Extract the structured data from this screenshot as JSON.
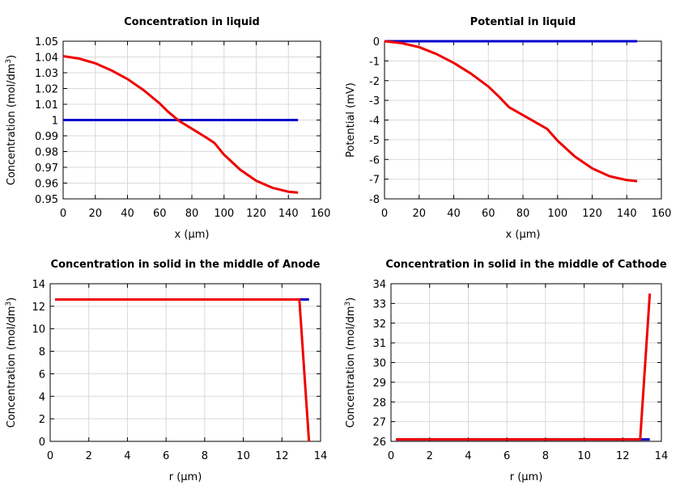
{
  "chart_data": [
    {
      "type": "line",
      "title": "Concentration in liquid",
      "xlabel": "x (µm)",
      "ylabel": "Concentration (mol/dm",
      "ylabel_sup": "3",
      "ylabel_end": ")",
      "xlim": [
        0,
        160
      ],
      "ylim": [
        0.95,
        1.05
      ],
      "xticks": [
        0,
        20,
        40,
        60,
        80,
        100,
        120,
        140,
        160
      ],
      "yticks": [
        0.95,
        0.96,
        0.97,
        0.98,
        0.99,
        1,
        1.01,
        1.02,
        1.03,
        1.04,
        1.05
      ],
      "yticklabels": [
        "0.95",
        "0.96",
        "0.97",
        "0.98",
        "0.99",
        "1",
        "1.01",
        "1.02",
        "1.03",
        "1.04",
        "1.05"
      ],
      "series": [
        {
          "color": "#0000cc",
          "x": [
            0,
            146
          ],
          "y": [
            1.0,
            1.0
          ]
        },
        {
          "color": "#ee0000",
          "x": [
            0,
            10,
            20,
            30,
            40,
            50,
            60,
            65,
            72,
            80,
            88,
            94,
            100,
            110,
            120,
            130,
            140,
            146
          ],
          "y": [
            1.0405,
            1.039,
            1.036,
            1.0315,
            1.026,
            1.019,
            1.0105,
            1.0055,
            0.9995,
            0.9945,
            0.9895,
            0.9855,
            0.978,
            0.9685,
            0.9615,
            0.957,
            0.9545,
            0.954
          ]
        }
      ]
    },
    {
      "type": "line",
      "title": "Potential in liquid",
      "xlabel": "x (µm)",
      "ylabel": "Potential (mV)",
      "ylabel_sup": "",
      "ylabel_end": "",
      "xlim": [
        0,
        160
      ],
      "ylim": [
        -8,
        0
      ],
      "xticks": [
        0,
        20,
        40,
        60,
        80,
        100,
        120,
        140,
        160
      ],
      "yticks": [
        -8,
        -7,
        -6,
        -5,
        -4,
        -3,
        -2,
        -1,
        0
      ],
      "yticklabels": [
        "-8",
        "-7",
        "-6",
        "-5",
        "-4",
        "-3",
        "-2",
        "-1",
        "0"
      ],
      "series": [
        {
          "color": "#0000cc",
          "x": [
            0,
            146
          ],
          "y": [
            0,
            0
          ]
        },
        {
          "color": "#ee0000",
          "x": [
            0,
            10,
            20,
            30,
            40,
            50,
            60,
            66,
            72,
            80,
            88,
            94,
            100,
            110,
            120,
            130,
            140,
            146
          ],
          "y": [
            0,
            -0.1,
            -0.3,
            -0.65,
            -1.1,
            -1.65,
            -2.3,
            -2.8,
            -3.35,
            -3.75,
            -4.15,
            -4.45,
            -5.05,
            -5.85,
            -6.45,
            -6.85,
            -7.05,
            -7.1
          ]
        }
      ]
    },
    {
      "type": "line",
      "title": "Concentration in solid in the middle of Anode",
      "xlabel": "r (µm)",
      "ylabel": "Concentration (mol/dm",
      "ylabel_sup": "3",
      "ylabel_end": ")",
      "xlim": [
        0,
        14
      ],
      "ylim": [
        0,
        14
      ],
      "xticks": [
        0,
        2,
        4,
        6,
        8,
        10,
        12,
        14
      ],
      "yticks": [
        0,
        2,
        4,
        6,
        8,
        10,
        12,
        14
      ],
      "yticklabels": [
        "0",
        "2",
        "4",
        "6",
        "8",
        "10",
        "12",
        "14"
      ],
      "series": [
        {
          "color": "#0000cc",
          "x": [
            0.25,
            13.4
          ],
          "y": [
            12.6,
            12.6
          ]
        },
        {
          "color": "#ee0000",
          "x": [
            0.25,
            12.9,
            13.4
          ],
          "y": [
            12.6,
            12.6,
            0
          ]
        }
      ]
    },
    {
      "type": "line",
      "title": "Concentration in solid in the middle of Cathode",
      "xlabel": "r (µm)",
      "ylabel": "Concentration (mol/dm",
      "ylabel_sup": "3",
      "ylabel_end": ")",
      "xlim": [
        0,
        14
      ],
      "ylim": [
        26,
        34
      ],
      "xticks": [
        0,
        2,
        4,
        6,
        8,
        10,
        12,
        14
      ],
      "yticks": [
        26,
        27,
        28,
        29,
        30,
        31,
        32,
        33,
        34
      ],
      "yticklabels": [
        "26",
        "27",
        "28",
        "29",
        "30",
        "31",
        "32",
        "33",
        "34"
      ],
      "series": [
        {
          "color": "#0000cc",
          "x": [
            0.25,
            13.4
          ],
          "y": [
            26.1,
            26.1
          ]
        },
        {
          "color": "#ee0000",
          "x": [
            0.25,
            12.9,
            13.4
          ],
          "y": [
            26.1,
            26.1,
            33.5
          ]
        }
      ]
    }
  ]
}
